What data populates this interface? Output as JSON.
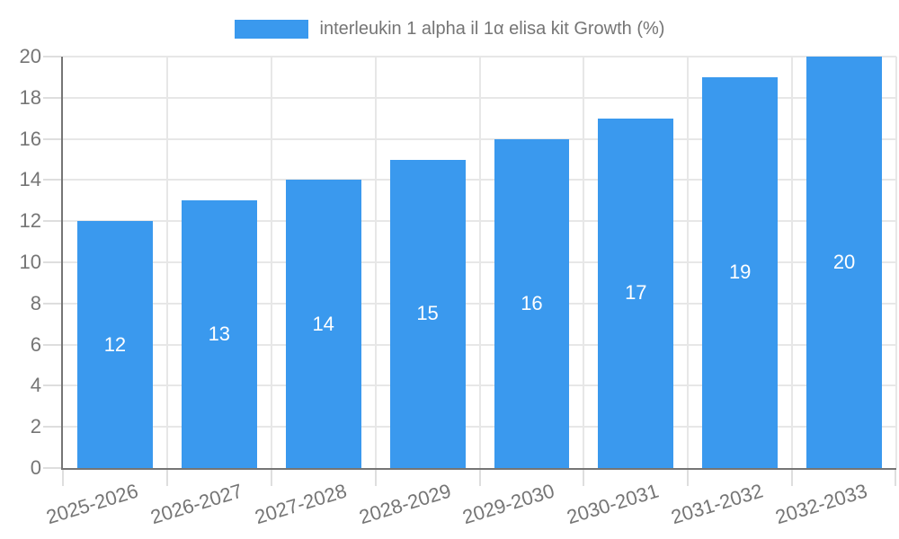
{
  "chart_data": {
    "type": "bar",
    "title": "interleukin 1 alpha il 1α elisa kit Growth (%)",
    "categories": [
      "2025-2026",
      "2026-2027",
      "2027-2028",
      "2028-2029",
      "2029-2030",
      "2030-2031",
      "2031-2032",
      "2032-2033"
    ],
    "values": [
      12,
      13,
      14,
      15,
      16,
      17,
      19,
      20
    ],
    "xlabel": "",
    "ylabel": "",
    "ylim": [
      0,
      20
    ],
    "y_ticks": [
      0,
      2,
      4,
      6,
      8,
      10,
      12,
      14,
      16,
      18,
      20
    ],
    "grid": true,
    "legend_position": "top-center",
    "bar_labels": "centered-white",
    "colors": {
      "bar": "#3A99EE",
      "axis_line": "#757575",
      "grid_line": "#E7E7E7",
      "tick_line": "#DEDEDE",
      "axis_text": "#757575",
      "bar_label_text": "#FFFFFF",
      "background": "#FFFFFF"
    }
  }
}
